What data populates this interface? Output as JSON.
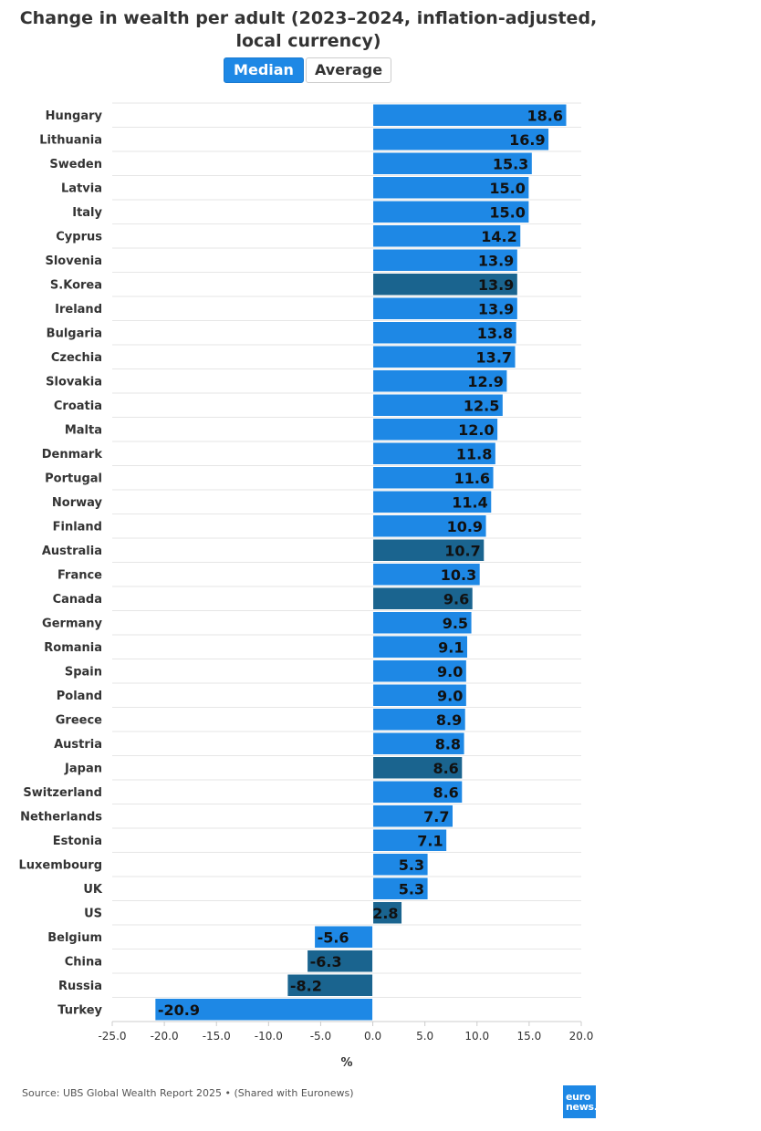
{
  "title": "Change in wealth per adult (2023–2024, inflation-adjusted, local currency)",
  "toggle": {
    "median_label": "Median",
    "average_label": "Average",
    "selected": "Median"
  },
  "source": "Source: UBS Global Wealth Report 2025 • (Shared with Euronews)",
  "logo": {
    "line1": "euro",
    "line2": "news."
  },
  "colors": {
    "primary_bar": "#1e88e5",
    "highlight_bar": "#1a648f",
    "button_active": "#1e88e5"
  },
  "chart_data": {
    "type": "bar",
    "orientation": "horizontal",
    "title": "Change in wealth per adult (2023–2024, inflation-adjusted, local currency)",
    "xlabel": "%",
    "ylabel": "",
    "xlim": [
      -25,
      20
    ],
    "xticks": [
      -25,
      -20,
      -15,
      -10,
      -5,
      0,
      5,
      10,
      15,
      20
    ],
    "xtick_labels": [
      "-25.0",
      "-20.0",
      "-15.0",
      "-10.0",
      "-5.0",
      "0.0",
      "5.0",
      "10.0",
      "15.0",
      "20.0"
    ],
    "grid": true,
    "categories": [
      "Hungary",
      "Lithuania",
      "Sweden",
      "Latvia",
      "Italy",
      "Cyprus",
      "Slovenia",
      "S.Korea",
      "Ireland",
      "Bulgaria",
      "Czechia",
      "Slovakia",
      "Croatia",
      "Malta",
      "Denmark",
      "Portugal",
      "Norway",
      "Finland",
      "Australia",
      "France",
      "Canada",
      "Germany",
      "Romania",
      "Spain",
      "Poland",
      "Greece",
      "Austria",
      "Japan",
      "Switzerland",
      "Netherlands",
      "Estonia",
      "Luxembourg",
      "UK",
      "US",
      "Belgium",
      "China",
      "Russia",
      "Turkey"
    ],
    "values": [
      18.6,
      16.9,
      15.3,
      15.0,
      15.0,
      14.2,
      13.9,
      13.9,
      13.9,
      13.8,
      13.7,
      12.9,
      12.5,
      12.0,
      11.8,
      11.6,
      11.4,
      10.9,
      10.7,
      10.3,
      9.6,
      9.5,
      9.1,
      9.0,
      9.0,
      8.9,
      8.8,
      8.6,
      8.6,
      7.7,
      7.1,
      5.3,
      5.3,
      2.8,
      -5.6,
      -6.3,
      -8.2,
      -20.9
    ],
    "value_labels": [
      "18.6",
      "16.9",
      "15.3",
      "15.0",
      "15.0",
      "14.2",
      "13.9",
      "13.9",
      "13.9",
      "13.8",
      "13.7",
      "12.9",
      "12.5",
      "12.0",
      "11.8",
      "11.6",
      "11.4",
      "10.9",
      "10.7",
      "10.3",
      "9.6",
      "9.5",
      "9.1",
      "9.0",
      "9.0",
      "8.9",
      "8.8",
      "8.6",
      "8.6",
      "7.7",
      "7.1",
      "5.3",
      "5.3",
      "2.8",
      "-5.6",
      "-6.3",
      "-8.2",
      "-20.9"
    ],
    "highlighted": [
      "S.Korea",
      "Australia",
      "Canada",
      "Japan",
      "US",
      "China",
      "Russia"
    ]
  }
}
